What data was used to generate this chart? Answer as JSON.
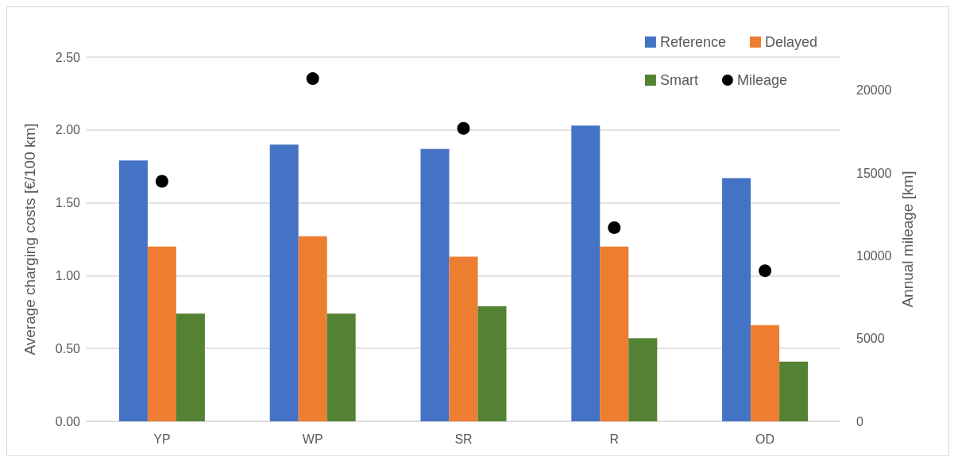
{
  "chart_data": {
    "type": "bar",
    "categories": [
      "YP",
      "WP",
      "SR",
      "R",
      "OD"
    ],
    "ylabel": "Average charging costs [€/100 km]",
    "y2label": "Annual mileage [km]",
    "series": [
      {
        "name": "Reference",
        "color": "#4472c4",
        "values": [
          1.79,
          1.9,
          1.87,
          2.03,
          1.67
        ]
      },
      {
        "name": "Delayed",
        "color": "#ed7d31",
        "values": [
          1.2,
          1.27,
          1.13,
          1.2,
          0.66
        ]
      },
      {
        "name": "Smart",
        "color": "#548235",
        "values": [
          0.74,
          0.74,
          0.79,
          0.57,
          0.41
        ]
      },
      {
        "name": "Mileage",
        "type": "scatter",
        "axis": "y2",
        "color": "#000000",
        "marker": "circle",
        "values": [
          14500,
          20700,
          17700,
          11700,
          9100
        ]
      }
    ],
    "ylim": [
      0,
      2.5
    ],
    "yticks": [
      {
        "value": 0,
        "label": "0.00"
      },
      {
        "value": 0.5,
        "label": "0.50"
      },
      {
        "value": 1,
        "label": "1.00"
      },
      {
        "value": 1.5,
        "label": "1.50"
      },
      {
        "value": 2,
        "label": "2.00"
      },
      {
        "value": 2.5,
        "label": "2.50"
      }
    ],
    "y2lim": [
      0,
      22000
    ],
    "y2ticks": [
      0,
      5000,
      10000,
      15000,
      20000
    ],
    "grid": "y",
    "legend": "top right"
  }
}
